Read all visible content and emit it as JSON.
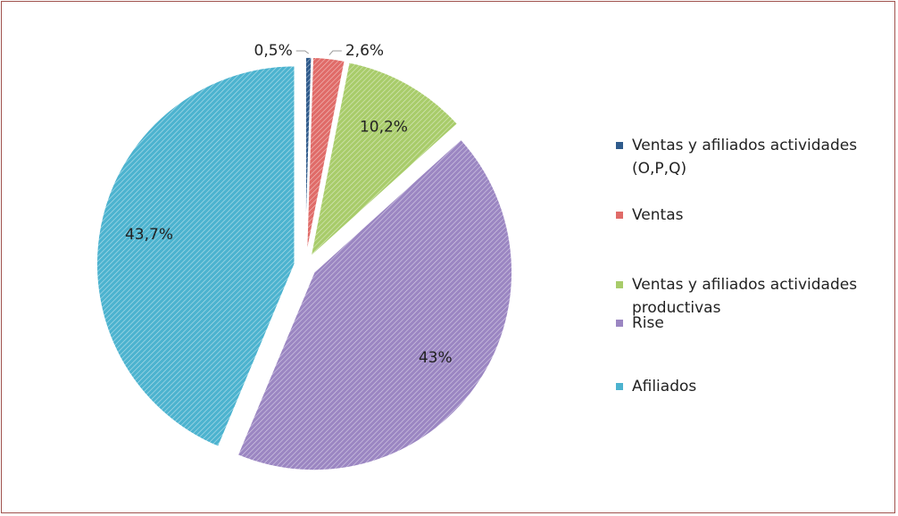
{
  "chart_data": {
    "type": "pie",
    "categories": [
      "Ventas y afiliados actividades (O,P,Q)",
      "Ventas",
      "Ventas y afiliados actividades productivas",
      "Rise",
      "Afiliados"
    ],
    "values": [
      0.5,
      2.6,
      10.2,
      43,
      43.7
    ],
    "value_labels": [
      "0,5%",
      "2,6%",
      "10,2%",
      "43%",
      "43,7%"
    ],
    "colors": [
      "#2f5b8c",
      "#e06b68",
      "#a8cc6a",
      "#9b86c2",
      "#4cb3cf"
    ],
    "legend": "right"
  }
}
